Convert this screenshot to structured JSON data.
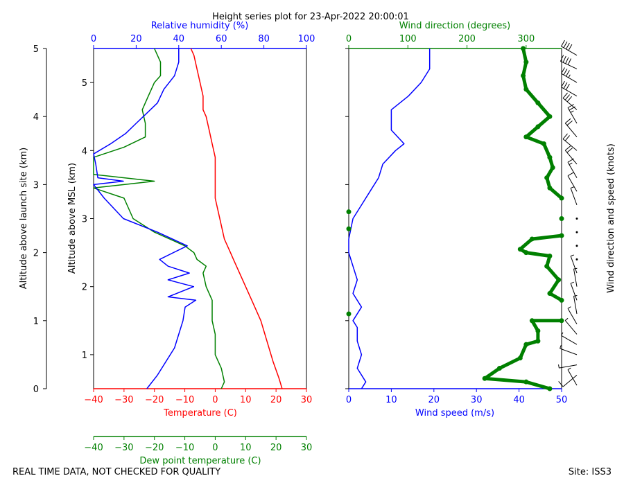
{
  "title": "Height series plot for 23-Apr-2022 20:00:01",
  "footer_left": "REAL TIME DATA, NOT CHECKED FOR QUALITY",
  "footer_right": "Site: ISS3",
  "colors": {
    "temperature": "#ff0000",
    "dewpoint": "#008000",
    "rh": "#0000ff",
    "wspd": "#0000ff",
    "wdir": "#008000",
    "barb": "#000000"
  },
  "chart_data": [
    {
      "type": "line",
      "name": "thermodynamic-profile",
      "y_left_label": "Altitude above launch site (km)",
      "y_left_ticks": [
        0,
        1,
        2,
        3,
        4,
        5
      ],
      "y_left_lim": [
        0,
        5
      ],
      "y_msl_label": "Altitude above MSL (km)",
      "y_msl_ticks": [
        1,
        2,
        3,
        4,
        5
      ],
      "y_msl_lim": [
        0.5,
        5.5
      ],
      "xlabel_temperature": "Temperature (C)",
      "x_temperature_ticks": [
        -40,
        -30,
        -20,
        -10,
        0,
        10,
        20,
        30
      ],
      "x_temperature_lim": [
        -40,
        30
      ],
      "xlabel_dewpoint": "Dew point temperature (C)",
      "x_dewpoint_ticks": [
        -40,
        -30,
        -20,
        -10,
        0,
        10,
        20,
        30
      ],
      "xlabel_rh": "Relative humidity (%)",
      "x_rh_ticks": [
        0,
        20,
        40,
        60,
        80,
        100
      ],
      "x_rh_lim": [
        0,
        100
      ],
      "series": [
        {
          "name": "Temperature",
          "x_units": "C",
          "points": [
            [
              22,
              0
            ],
            [
              21,
              0.15
            ],
            [
              19,
              0.4
            ],
            [
              17,
              0.7
            ],
            [
              15,
              1.0
            ],
            [
              12,
              1.3
            ],
            [
              10,
              1.5
            ],
            [
              8,
              1.7
            ],
            [
              6,
              1.9
            ],
            [
              5,
              2.0
            ],
            [
              3,
              2.2
            ],
            [
              2,
              2.4
            ],
            [
              1,
              2.6
            ],
            [
              0,
              2.8
            ],
            [
              0,
              3.0
            ],
            [
              0,
              3.2
            ],
            [
              0,
              3.4
            ],
            [
              -1,
              3.6
            ],
            [
              -2,
              3.8
            ],
            [
              -3,
              4.0
            ],
            [
              -4,
              4.1
            ],
            [
              -4,
              4.3
            ],
            [
              -5,
              4.5
            ],
            [
              -6,
              4.7
            ],
            [
              -7,
              4.9
            ],
            [
              -8,
              5.0
            ]
          ]
        },
        {
          "name": "Dew point",
          "x_units": "C",
          "points": [
            [
              2,
              0
            ],
            [
              3,
              0.1
            ],
            [
              2,
              0.3
            ],
            [
              0,
              0.5
            ],
            [
              0,
              0.8
            ],
            [
              -1,
              1.0
            ],
            [
              -1,
              1.3
            ],
            [
              -3,
              1.5
            ],
            [
              -4,
              1.7
            ],
            [
              -3,
              1.8
            ],
            [
              -6,
              1.9
            ],
            [
              -7,
              2.0
            ],
            [
              -10,
              2.1
            ],
            [
              -20,
              2.3
            ],
            [
              -27,
              2.5
            ],
            [
              -30,
              2.8
            ],
            [
              -40,
              2.95
            ],
            [
              -20,
              3.05
            ],
            [
              -40,
              3.15
            ],
            [
              -40,
              3.4
            ],
            [
              -30,
              3.55
            ],
            [
              -23,
              3.7
            ],
            [
              -23,
              3.9
            ],
            [
              -24,
              4.1
            ],
            [
              -22,
              4.3
            ],
            [
              -20,
              4.5
            ],
            [
              -18,
              4.6
            ],
            [
              -18,
              4.8
            ],
            [
              -20,
              5.0
            ]
          ]
        },
        {
          "name": "Relative humidity",
          "x_units": "%",
          "points": [
            [
              25,
              0
            ],
            [
              30,
              0.2
            ],
            [
              38,
              0.6
            ],
            [
              42,
              1.0
            ],
            [
              43,
              1.2
            ],
            [
              48,
              1.3
            ],
            [
              35,
              1.35
            ],
            [
              47,
              1.5
            ],
            [
              35,
              1.6
            ],
            [
              45,
              1.7
            ],
            [
              35,
              1.8
            ],
            [
              31,
              1.9
            ],
            [
              44,
              2.1
            ],
            [
              30,
              2.3
            ],
            [
              14,
              2.5
            ],
            [
              5,
              2.8
            ],
            [
              0,
              3.0
            ],
            [
              14,
              3.05
            ],
            [
              2,
              3.1
            ],
            [
              1,
              3.3
            ],
            [
              0,
              3.45
            ],
            [
              8,
              3.6
            ],
            [
              15,
              3.75
            ],
            [
              20,
              3.9
            ],
            [
              25,
              4.05
            ],
            [
              30,
              4.2
            ],
            [
              33,
              4.4
            ],
            [
              38,
              4.6
            ],
            [
              40,
              4.8
            ],
            [
              40,
              5.0
            ]
          ]
        }
      ]
    },
    {
      "type": "line",
      "name": "wind-profile",
      "xlabel_speed": "Wind speed (m/s)",
      "x_speed_ticks": [
        0,
        10,
        20,
        30,
        40,
        50
      ],
      "x_speed_lim": [
        0,
        50
      ],
      "xlabel_direction": "Wind direction (degrees)",
      "x_direction_ticks": [
        0,
        100,
        200,
        300
      ],
      "x_direction_lim": [
        0,
        360
      ],
      "ylabel_right": "Wind direction and speed (knots)",
      "y_lim": [
        0,
        5
      ],
      "series": [
        {
          "name": "Wind speed",
          "x_units": "m/s",
          "points": [
            [
              3,
              0
            ],
            [
              4,
              0.1
            ],
            [
              2,
              0.3
            ],
            [
              3,
              0.5
            ],
            [
              2,
              0.7
            ],
            [
              2,
              0.9
            ],
            [
              1,
              1.0
            ],
            [
              3,
              1.2
            ],
            [
              1,
              1.4
            ],
            [
              2,
              1.6
            ],
            [
              1,
              1.8
            ],
            [
              0,
              2.0
            ],
            [
              0,
              2.2
            ],
            [
              1,
              2.5
            ],
            [
              3,
              2.7
            ],
            [
              5,
              2.9
            ],
            [
              7,
              3.1
            ],
            [
              8,
              3.3
            ],
            [
              11,
              3.5
            ],
            [
              13,
              3.6
            ],
            [
              10,
              3.8
            ],
            [
              10,
              4.1
            ],
            [
              14,
              4.3
            ],
            [
              17,
              4.5
            ],
            [
              19,
              4.7
            ],
            [
              19,
              4.9
            ],
            [
              19,
              5.0
            ]
          ]
        },
        {
          "name": "Wind direction",
          "x_units": "degrees",
          "points": [
            [
              340,
              0
            ],
            [
              300,
              0.1
            ],
            [
              230,
              0.15
            ],
            [
              255,
              0.3
            ],
            [
              290,
              0.45
            ],
            [
              300,
              0.65
            ],
            [
              320,
              0.7
            ],
            [
              320,
              0.85
            ],
            [
              310,
              1.0
            ],
            [
              360,
              1.0
            ],
            [
              0,
              1.1
            ],
            [
              360,
              1.3
            ],
            [
              340,
              1.4
            ],
            [
              355,
              1.6
            ],
            [
              335,
              1.8
            ],
            [
              340,
              1.95
            ],
            [
              300,
              2.0
            ],
            [
              290,
              2.05
            ],
            [
              310,
              2.2
            ],
            [
              360,
              2.25
            ],
            [
              0,
              2.35
            ],
            [
              360,
              2.5
            ],
            [
              0,
              2.6
            ],
            [
              360,
              2.8
            ],
            [
              340,
              2.95
            ],
            [
              335,
              3.1
            ],
            [
              345,
              3.25
            ],
            [
              340,
              3.4
            ],
            [
              330,
              3.6
            ],
            [
              300,
              3.7
            ],
            [
              320,
              3.85
            ],
            [
              340,
              4.0
            ],
            [
              320,
              4.2
            ],
            [
              300,
              4.4
            ],
            [
              295,
              4.6
            ],
            [
              300,
              4.8
            ],
            [
              295,
              5.0
            ]
          ]
        }
      ],
      "barbs": [
        {
          "alt": 0.05,
          "dir": 330,
          "spd": 6
        },
        {
          "alt": 0.2,
          "dir": 230,
          "spd": 8
        },
        {
          "alt": 0.35,
          "dir": 260,
          "spd": 6
        },
        {
          "alt": 0.5,
          "dir": 290,
          "spd": 5
        },
        {
          "alt": 0.65,
          "dir": 300,
          "spd": 6
        },
        {
          "alt": 0.8,
          "dir": 320,
          "spd": 5
        },
        {
          "alt": 0.95,
          "dir": 330,
          "spd": 3
        },
        {
          "alt": 1.1,
          "dir": 350,
          "spd": 5
        },
        {
          "alt": 1.3,
          "dir": 340,
          "spd": 3
        },
        {
          "alt": 1.5,
          "dir": 350,
          "spd": 3
        },
        {
          "alt": 1.7,
          "dir": 340,
          "spd": 4
        },
        {
          "alt": 1.9,
          "dir": 330,
          "spd": 1
        },
        {
          "alt": 2.1,
          "dir": 300,
          "spd": 1
        },
        {
          "alt": 2.3,
          "dir": 310,
          "spd": 1
        },
        {
          "alt": 2.5,
          "dir": 350,
          "spd": 2
        },
        {
          "alt": 2.7,
          "dir": 340,
          "spd": 5
        },
        {
          "alt": 2.9,
          "dir": 330,
          "spd": 12
        },
        {
          "alt": 3.1,
          "dir": 330,
          "spd": 15
        },
        {
          "alt": 3.3,
          "dir": 320,
          "spd": 18
        },
        {
          "alt": 3.5,
          "dir": 310,
          "spd": 22
        },
        {
          "alt": 3.7,
          "dir": 320,
          "spd": 22
        },
        {
          "alt": 3.9,
          "dir": 330,
          "spd": 24
        },
        {
          "alt": 4.1,
          "dir": 310,
          "spd": 28
        },
        {
          "alt": 4.3,
          "dir": 300,
          "spd": 32
        },
        {
          "alt": 4.5,
          "dir": 300,
          "spd": 36
        },
        {
          "alt": 4.7,
          "dir": 295,
          "spd": 38
        },
        {
          "alt": 4.9,
          "dir": 300,
          "spd": 38
        }
      ]
    }
  ]
}
